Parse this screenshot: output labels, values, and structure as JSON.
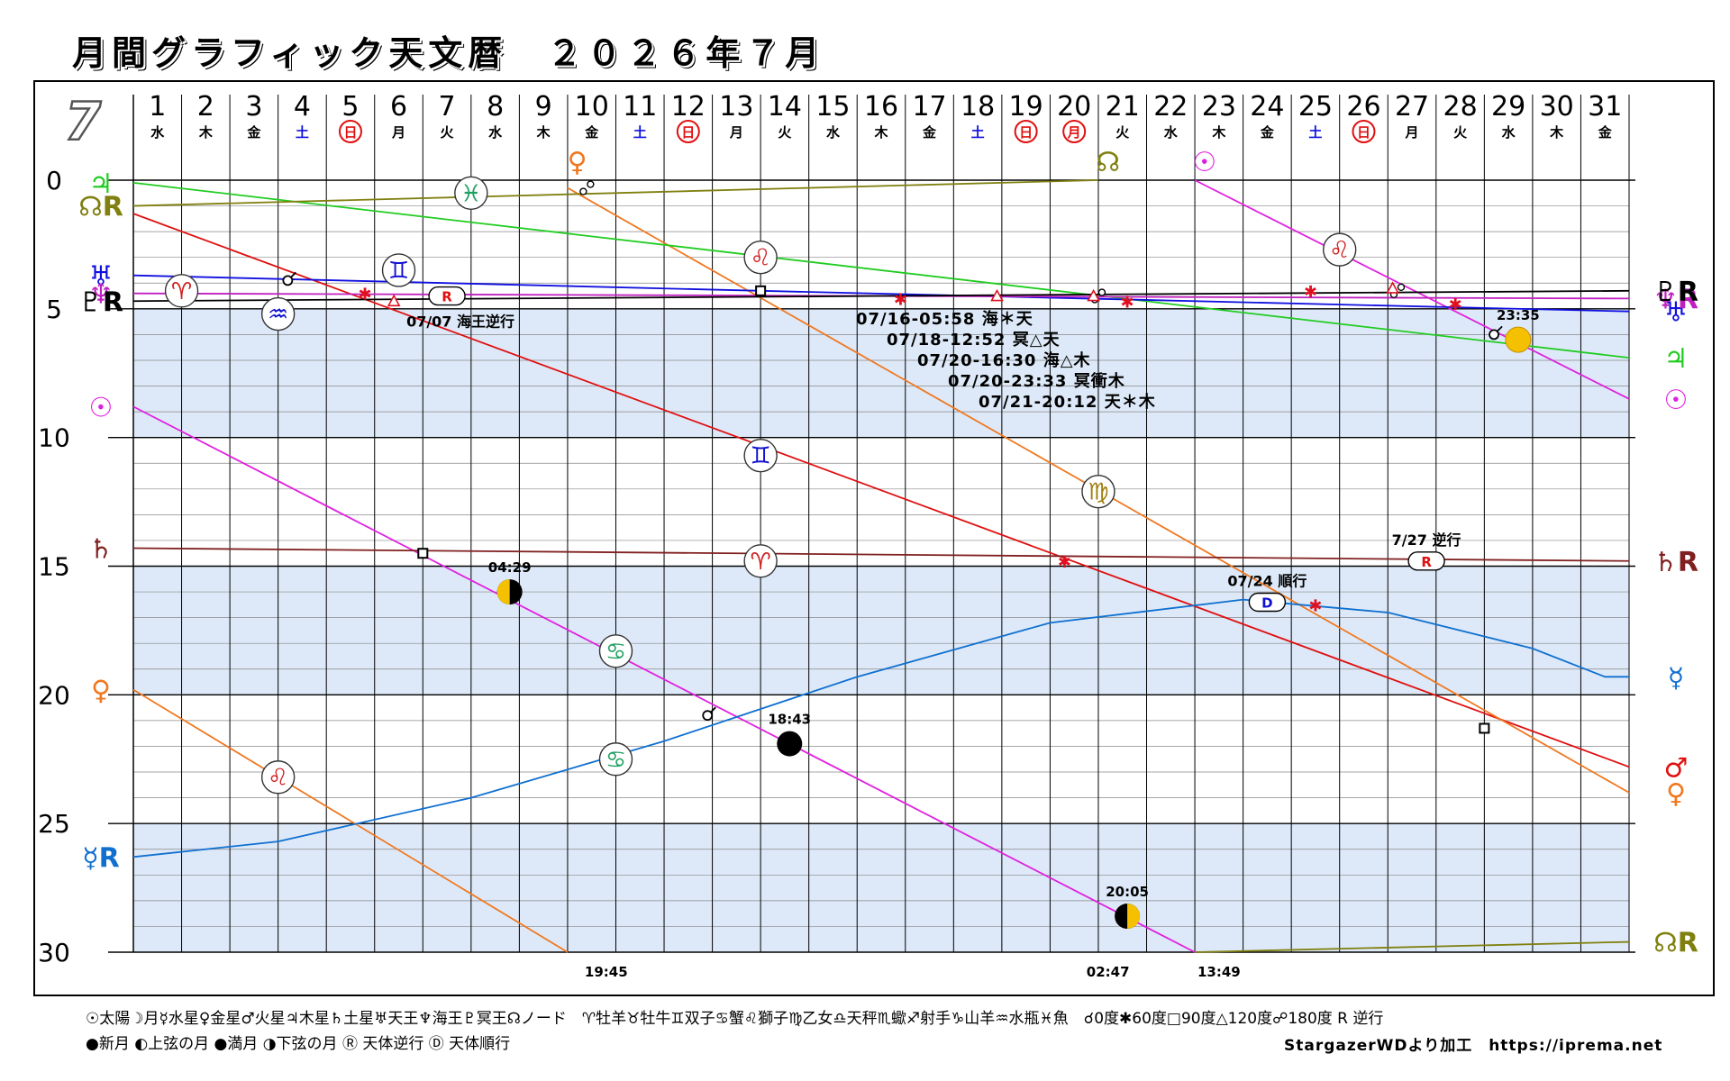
{
  "title": "月間グラフィック天文暦　２０２６年７月",
  "chart_data": {
    "type": "line",
    "month_label": "7",
    "x": [
      1,
      2,
      3,
      4,
      5,
      6,
      7,
      8,
      9,
      10,
      11,
      12,
      13,
      14,
      15,
      16,
      17,
      18,
      19,
      20,
      21,
      22,
      23,
      24,
      25,
      26,
      27,
      28,
      29,
      30,
      31
    ],
    "weekdays": [
      "水",
      "木",
      "金",
      "土",
      "日",
      "月",
      "火",
      "水",
      "木",
      "金",
      "土",
      "日",
      "月",
      "火",
      "水",
      "木",
      "金",
      "土",
      "日",
      "月",
      "火",
      "水",
      "木",
      "金",
      "土",
      "日",
      "月",
      "火",
      "水",
      "木",
      "金"
    ],
    "holidays": [
      20
    ],
    "ylim": [
      0,
      30
    ],
    "yticks": [
      "0",
      "5",
      "10",
      "15",
      "20",
      "25",
      "30"
    ],
    "grid": true,
    "series": [
      {
        "name": "♂",
        "color": "#e01010",
        "values": [
          [
            1,
            1.3
          ],
          [
            32,
            22.8
          ]
        ],
        "label_end": "♂"
      },
      {
        "name": "♀",
        "color": "#f07820",
        "values": [
          [
            1,
            19.8
          ],
          [
            10,
            30
          ]
        ],
        "label_start": "♀"
      },
      {
        "name": "♀",
        "color": "#f07820",
        "values": [
          [
            10,
            0.3
          ],
          [
            32,
            23.8
          ]
        ],
        "label_end": "♀"
      },
      {
        "name": "☉",
        "color": "#e020e0",
        "values": [
          [
            1,
            8.8
          ],
          [
            23,
            30
          ]
        ],
        "label_start": "☉"
      },
      {
        "name": "☉",
        "color": "#e020e0",
        "values": [
          [
            23,
            0
          ],
          [
            32,
            8.5
          ]
        ],
        "label_end": "☉"
      },
      {
        "name": "♃",
        "color": "#20cc20",
        "values": [
          [
            1,
            0.1
          ],
          [
            32,
            6.9
          ]
        ],
        "label_start": "♃",
        "label_end": "♃"
      },
      {
        "name": "♄",
        "color": "#802020",
        "values": [
          [
            1,
            14.3
          ],
          [
            32,
            14.8
          ]
        ],
        "label_start": "♄",
        "label_end": "♄R"
      },
      {
        "name": "♅",
        "color": "#1010e0",
        "values": [
          [
            1,
            3.7
          ],
          [
            14,
            4.3
          ],
          [
            32,
            5.1
          ]
        ],
        "label_start": "♅",
        "label_end": "♅"
      },
      {
        "name": "♆",
        "color": "#c020c0",
        "values": [
          [
            1,
            4.4
          ],
          [
            32,
            4.6
          ]
        ],
        "label_start": "♆",
        "label_end": "♆R"
      },
      {
        "name": "♇",
        "color": "#000000",
        "values": [
          [
            1,
            4.7
          ],
          [
            32,
            4.3
          ]
        ],
        "label_start": "♇R",
        "label_end": "♇R"
      },
      {
        "name": "☊",
        "color": "#808010",
        "values": [
          [
            1,
            1.0
          ],
          [
            21,
            0
          ]
        ],
        "label_start": "☊R"
      },
      {
        "name": "☊",
        "color": "#808010",
        "values": [
          [
            23,
            30
          ],
          [
            32,
            29.6
          ]
        ],
        "label_end": "☊R"
      },
      {
        "name": "☿",
        "color": "#1070d0",
        "values": [
          [
            1,
            26.3
          ],
          [
            4,
            25.7
          ],
          [
            8,
            24.0
          ],
          [
            12,
            21.8
          ],
          [
            16,
            19.3
          ],
          [
            20,
            17.2
          ],
          [
            24,
            16.3
          ],
          [
            27,
            16.8
          ],
          [
            30,
            18.2
          ],
          [
            31.5,
            19.3
          ],
          [
            32,
            19.3
          ]
        ],
        "label_start": "☿R",
        "label_end": "☿"
      }
    ],
    "sign_markers": [
      {
        "sign": "♓",
        "x": 8,
        "y": 0.5,
        "color": "#20a060"
      },
      {
        "sign": "♌",
        "x": 14,
        "y": 3.0,
        "color": "#d02020"
      },
      {
        "sign": "♌",
        "x": 26,
        "y": 2.7,
        "color": "#d02020"
      },
      {
        "sign": "♊",
        "x": 6.5,
        "y": 3.5,
        "color": "#1010d0"
      },
      {
        "sign": "♈",
        "x": 2,
        "y": 4.3,
        "color": "#d02020"
      },
      {
        "sign": "♒",
        "x": 4,
        "y": 5.2,
        "color": "#1010d0"
      },
      {
        "sign": "♊",
        "x": 14,
        "y": 10.7,
        "color": "#1010d0"
      },
      {
        "sign": "♍",
        "x": 21,
        "y": 12.1,
        "color": "#a08010"
      },
      {
        "sign": "♈",
        "x": 14,
        "y": 14.8,
        "color": "#d02020"
      },
      {
        "sign": "♋",
        "x": 11,
        "y": 18.3,
        "color": "#20a060"
      },
      {
        "sign": "♋",
        "x": 11,
        "y": 22.5,
        "color": "#20a060"
      },
      {
        "sign": "♌",
        "x": 4,
        "y": 23.2,
        "color": "#d02020"
      }
    ],
    "moon_phases": [
      {
        "phase": "上弦",
        "x": 8.8,
        "y": 16.0,
        "time": "04:29"
      },
      {
        "phase": "満月",
        "x": 29.7,
        "y": 6.2,
        "time": "23:35"
      },
      {
        "phase": "下弦",
        "x": 21.6,
        "y": 28.6,
        "time": "20:05"
      },
      {
        "phase": "新月",
        "x": 14.6,
        "y": 21.9,
        "time": "18:43"
      }
    ],
    "sign_entries_top": [
      {
        "x": 10.2,
        "label": "♀",
        "color": "#f07820"
      },
      {
        "x": 21.2,
        "label": "☊",
        "color": "#808010"
      },
      {
        "x": 23.2,
        "label": "☉",
        "color": "#e020e0"
      }
    ],
    "aspect_markers": [
      {
        "type": "square",
        "x": 14,
        "y": 4.3
      },
      {
        "type": "square",
        "x": 7,
        "y": 14.5
      },
      {
        "type": "square",
        "x": 29,
        "y": 21.3
      },
      {
        "type": "conj",
        "x": 4.2,
        "y": 3.9
      },
      {
        "type": "conj",
        "x": 12.9,
        "y": 20.8
      },
      {
        "type": "conj",
        "x": 29.2,
        "y": 6.0
      },
      {
        "type": "opp",
        "x": 10.4,
        "y": 0.3
      },
      {
        "type": "opp",
        "x": 21,
        "y": 4.5
      },
      {
        "type": "opp",
        "x": 27.2,
        "y": 4.3
      },
      {
        "type": "sextile",
        "x": 5.8,
        "y": 4.4
      },
      {
        "type": "sextile",
        "x": 16.9,
        "y": 4.6
      },
      {
        "type": "sextile",
        "x": 21.6,
        "y": 4.7
      },
      {
        "type": "sextile",
        "x": 25.4,
        "y": 4.3
      },
      {
        "type": "sextile",
        "x": 28.4,
        "y": 4.8
      },
      {
        "type": "sextile",
        "x": 20.3,
        "y": 14.8
      },
      {
        "type": "sextile",
        "x": 25.5,
        "y": 16.5
      },
      {
        "type": "trine",
        "x": 6.4,
        "y": 4.7
      },
      {
        "type": "trine",
        "x": 18.9,
        "y": 4.5
      },
      {
        "type": "trine",
        "x": 20.9,
        "y": 4.5
      },
      {
        "type": "trine",
        "x": 27.1,
        "y": 4.2
      }
    ],
    "station_badges": [
      {
        "type": "R",
        "x": 7.5,
        "y": 4.5,
        "text": "07/07 海王逆行"
      },
      {
        "type": "R",
        "x": 27.8,
        "y": 14.8,
        "text": "7/27 逆行"
      },
      {
        "type": "D",
        "x": 24.5,
        "y": 16.4,
        "text": "07/24 順行"
      }
    ],
    "aspect_list": [
      "07/16-05:58 海＊天",
      "07/18-12:52 冥△天",
      "07/20-16:30 海△木",
      "07/20-23:33 冥衝木",
      "07/21-20:12 天＊木"
    ],
    "bottom_times": [
      {
        "x": 10.8,
        "time": "19:45"
      },
      {
        "x": 21.2,
        "time": "02:47"
      },
      {
        "x": 23.5,
        "time": "13:49"
      }
    ]
  },
  "legend": {
    "row1": "☉太陽☽月☿水星♀金星♂火星♃木星♄土星♅天王♆海王♇冥王☊ノード　♈牡羊♉牡牛♊双子♋蟹♌獅子♍乙女♎天秤♏蠍♐射手♑山羊♒水瓶♓魚　☌0度✱60度□90度△120度☍180度 R 逆行",
    "row2": "●新月 ◐上弦の月 ●満月 ◑下弦の月 Ⓡ 天体逆行 Ⓓ 天体順行"
  },
  "credit": "StargazerWDより加工　https://iprema.net"
}
